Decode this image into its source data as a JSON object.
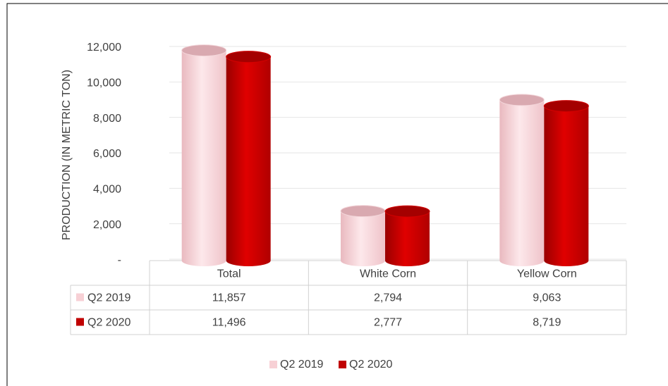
{
  "chart_data": {
    "type": "bar3d",
    "y_label": "PRODUCTION (IN METRIC TON)",
    "categories": [
      "Total",
      "White Corn",
      "Yellow Corn"
    ],
    "series": [
      {
        "name": "Q2 2019",
        "color": "#f7d0d5",
        "values": [
          11857,
          2794,
          9063
        ],
        "value_labels": [
          "11,857",
          "2,794",
          "9,063"
        ]
      },
      {
        "name": "Q2 2020",
        "color": "#c00000",
        "values": [
          11496,
          2777,
          8719
        ],
        "value_labels": [
          "11,496",
          "2,777",
          "8,719"
        ]
      }
    ],
    "ylim": [
      0,
      12000
    ],
    "yticks": [
      {
        "value": 0,
        "label": "-"
      },
      {
        "value": 2000,
        "label": "2,000"
      },
      {
        "value": 4000,
        "label": "4,000"
      },
      {
        "value": 6000,
        "label": "6,000"
      },
      {
        "value": 8000,
        "label": "8,000"
      },
      {
        "value": 10000,
        "label": "10,000"
      },
      {
        "value": 12000,
        "label": "12,000"
      }
    ],
    "grid": true,
    "legend": "bottom"
  }
}
